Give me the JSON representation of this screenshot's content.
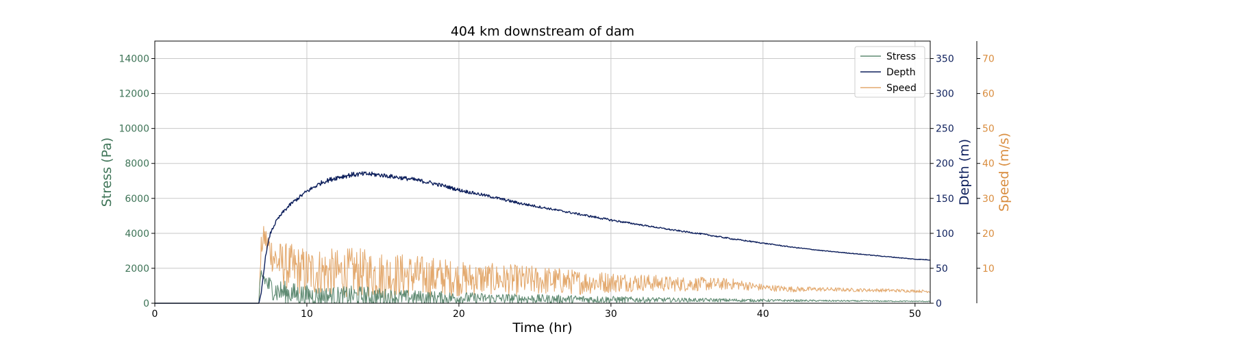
{
  "chart_data": {
    "type": "line",
    "title": "404 km downstream of dam",
    "xlabel": "Time (hr)",
    "xlim": [
      0,
      51
    ],
    "xticks": [
      0,
      10,
      20,
      30,
      40,
      50
    ],
    "grid": true,
    "legend_position": "top-right",
    "axes": {
      "stress": {
        "label": "Stress (Pa)",
        "color": "#3d7356",
        "ylim": [
          0,
          15000
        ],
        "ticks": [
          0,
          2000,
          4000,
          6000,
          8000,
          10000,
          12000,
          14000
        ]
      },
      "depth": {
        "label": "Depth (m)",
        "color": "#0d1f5c",
        "ylim": [
          0,
          375
        ],
        "ticks": [
          0,
          50,
          100,
          150,
          200,
          250,
          300,
          350
        ]
      },
      "speed": {
        "label": "Speed (m/s)",
        "color": "#d98d3f",
        "ylim": [
          0,
          75
        ],
        "ticks": [
          10,
          20,
          30,
          40,
          50,
          60,
          70
        ]
      }
    },
    "series": [
      {
        "name": "Stress",
        "axis": "stress",
        "color": "#5e8a72",
        "x": [
          0,
          6.85,
          6.9,
          7.0,
          7.2,
          7.5,
          8,
          9,
          10,
          11,
          12,
          13,
          14,
          15,
          16,
          17,
          18,
          19,
          20,
          22,
          24,
          26,
          28,
          30,
          32,
          34,
          36,
          38,
          40,
          42,
          44,
          46,
          48,
          50,
          51
        ],
        "y": [
          0,
          0,
          900,
          1700,
          1400,
          1000,
          700,
          550,
          450,
          420,
          400,
          400,
          380,
          360,
          340,
          330,
          320,
          310,
          300,
          280,
          260,
          240,
          230,
          210,
          200,
          190,
          180,
          170,
          160,
          150,
          140,
          130,
          120,
          110,
          105
        ],
        "noise_amp": [
          0,
          0,
          300,
          400,
          500,
          600,
          700,
          650,
          600,
          550,
          550,
          600,
          600,
          500,
          450,
          420,
          400,
          380,
          350,
          300,
          280,
          250,
          230,
          200,
          160,
          130,
          110,
          100,
          80,
          60,
          50,
          40,
          35,
          30,
          30
        ]
      },
      {
        "name": "Depth",
        "axis": "depth",
        "color": "#0d1f5c",
        "x": [
          0,
          6.85,
          7.0,
          7.3,
          7.6,
          8,
          8.5,
          9,
          10,
          11,
          12,
          13,
          14,
          15,
          16,
          17,
          18,
          19,
          20,
          22,
          24,
          26,
          28,
          30,
          32,
          34,
          36,
          38,
          40,
          42,
          44,
          46,
          48,
          50,
          51
        ],
        "y": [
          0,
          0,
          15,
          70,
          100,
          118,
          132,
          143,
          160,
          173,
          180,
          184,
          185,
          183,
          180,
          177,
          173,
          168,
          162,
          153,
          143,
          135,
          127,
          119,
          112,
          105,
          99,
          92,
          86,
          80,
          75,
          71,
          67,
          63,
          62
        ],
        "noise_amp": [
          0,
          0,
          2,
          3,
          4,
          4,
          5,
          5,
          6,
          6,
          7,
          7,
          7,
          6,
          6,
          6,
          6,
          5,
          5,
          4,
          4,
          3,
          3,
          3,
          2,
          2,
          2,
          2,
          1.5,
          1.2,
          1,
          1,
          1,
          1,
          1
        ]
      },
      {
        "name": "Speed",
        "axis": "speed",
        "color": "#e3a96e",
        "x": [
          0,
          6.85,
          7.0,
          7.2,
          7.6,
          8,
          9,
          10,
          11,
          12,
          13,
          14,
          15,
          16,
          17,
          18,
          19,
          20,
          22,
          24,
          26,
          28,
          30,
          32,
          34,
          36,
          38,
          40,
          42,
          44,
          46,
          48,
          50,
          51
        ],
        "y": [
          0,
          0,
          16,
          19,
          15,
          12,
          10,
          9,
          9,
          8.5,
          9,
          8.5,
          8,
          8,
          8,
          7.5,
          7.5,
          7,
          7,
          6.5,
          6.5,
          6,
          6,
          6,
          5.5,
          5.5,
          5.5,
          4.5,
          4,
          4,
          3.8,
          3.7,
          3.5,
          3.4
        ],
        "noise_amp": [
          0,
          0,
          3,
          4,
          5,
          6,
          7,
          7,
          7,
          7,
          7,
          7,
          7,
          6.5,
          6,
          6,
          5.5,
          5,
          4.5,
          4.5,
          4,
          3.5,
          3,
          2.5,
          2.2,
          2,
          1.6,
          1,
          0.8,
          0.6,
          0.5,
          0.5,
          0.4,
          0.4
        ]
      }
    ]
  }
}
